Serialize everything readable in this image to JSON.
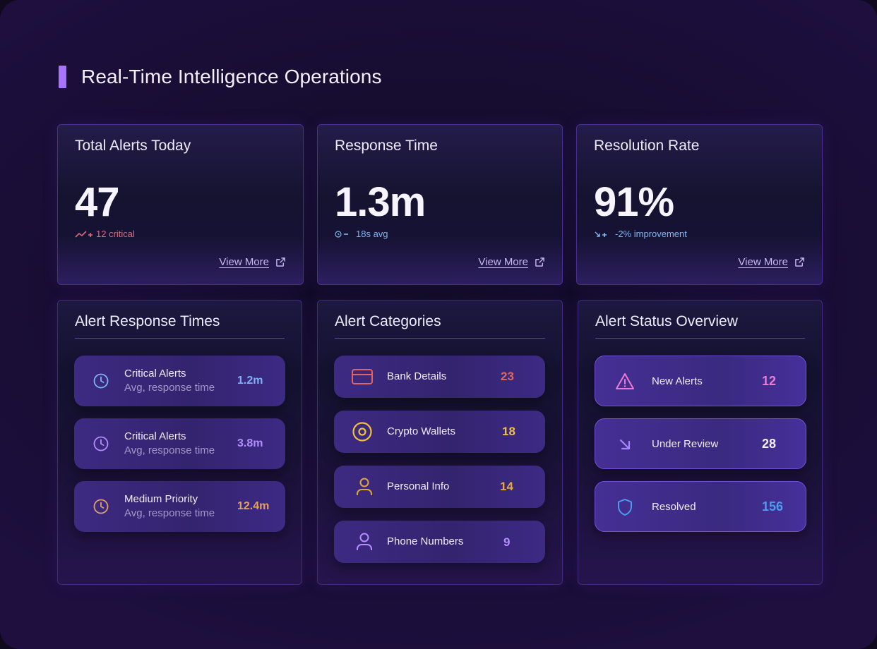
{
  "page": {
    "title": "Real-Time Intelligence Operations"
  },
  "metrics": [
    {
      "title": "Total Alerts Today",
      "value": "47",
      "sub_icon": "trend-up-plus-icon",
      "sub": "12 critical",
      "sub_color": "#e06a7a",
      "link": "View More"
    },
    {
      "title": "Response Time",
      "value": "1.3m",
      "sub_icon": "clock-minus-icon",
      "sub": "18s avg",
      "sub_color": "#7fb6f0",
      "link": "View More"
    },
    {
      "title": "Resolution Rate",
      "value": "91%",
      "sub_icon": "arrow-down-right-plus-icon",
      "sub": "-2% improvement",
      "sub_color": "#7fb6f0",
      "link": "View More"
    }
  ],
  "response_times": {
    "title": "Alert Response Times",
    "items": [
      {
        "icon": "clock-icon",
        "icon_color": "#7fb2f5",
        "title": "Critical Alerts",
        "sub": "Avg, response time",
        "value": "1.2m",
        "value_color": "#7fb2f5"
      },
      {
        "icon": "clock-icon",
        "icon_color": "#b48cff",
        "title": "Critical Alerts",
        "sub": "Avg, response time",
        "value": "3.8m",
        "value_color": "#b48cff"
      },
      {
        "icon": "clock-icon",
        "icon_color": "#e0a064",
        "title": "Medium Priority",
        "sub": "Avg, response time",
        "value": "12.4m",
        "value_color": "#e8a060"
      }
    ]
  },
  "categories": {
    "title": "Alert Categories",
    "items": [
      {
        "icon": "credit-card-icon",
        "icon_color": "#e06464",
        "label": "Bank Details",
        "value": "23",
        "value_color": "#e0675e"
      },
      {
        "icon": "coin-icon",
        "icon_color": "#f0c040",
        "label": "Crypto Wallets",
        "value": "18",
        "value_color": "#f0c040"
      },
      {
        "icon": "user-icon",
        "icon_color": "#e0a53a",
        "label": "Personal Info",
        "value": "14",
        "value_color": "#e8a93e"
      },
      {
        "icon": "user-icon",
        "icon_color": "#b48cff",
        "label": "Phone Numbers",
        "value": "9",
        "value_color": "#b48cff"
      }
    ]
  },
  "status": {
    "title": "Alert Status Overview",
    "items": [
      {
        "icon": "warning-triangle-icon",
        "icon_color": "#ee7ad4",
        "label": "New Alerts",
        "value": "12",
        "value_color": "#ee7ad4"
      },
      {
        "icon": "arrow-down-right-icon",
        "icon_color": "#a884ff",
        "label": "Under Review",
        "value": "28",
        "value_color": "#f4f0ff"
      },
      {
        "icon": "shield-icon",
        "icon_color": "#4c9cf0",
        "label": "Resolved",
        "value": "156",
        "value_color": "#4c9cf0"
      }
    ]
  }
}
